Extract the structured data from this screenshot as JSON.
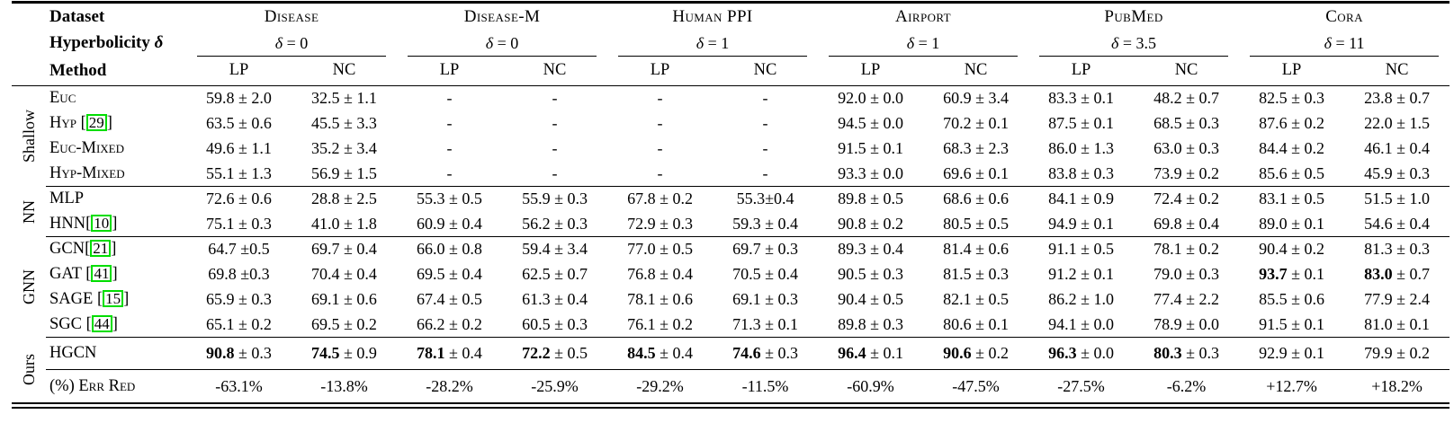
{
  "colors": {
    "citation_box": "#00dd00",
    "text": "#000000",
    "background": "#ffffff"
  },
  "table": {
    "header": {
      "corner_row1": "Dataset",
      "corner_row2_label": "Hyperbolicity",
      "corner_row2_symbol": "δ",
      "corner_row3": "Method",
      "delta_equals": " = ",
      "datasets": [
        {
          "name": "Disease",
          "delta": "0"
        },
        {
          "name": "Disease-M",
          "delta": "0"
        },
        {
          "name": "Human PPI",
          "delta": "1"
        },
        {
          "name": "Airport",
          "delta": "1"
        },
        {
          "name": "PubMed",
          "delta": "3.5"
        },
        {
          "name": "Cora",
          "delta": "11"
        }
      ],
      "subcolumns": [
        "LP",
        "NC"
      ]
    },
    "groups": [
      {
        "label": "Shallow",
        "rows": [
          {
            "method": {
              "name": "Euc"
            },
            "cells": [
              "59.8 ± 2.0",
              "32.5 ± 1.1",
              "-",
              "-",
              "-",
              "-",
              "92.0 ± 0.0",
              "60.9 ± 3.4",
              "83.3 ± 0.1",
              "48.2 ± 0.7",
              "82.5 ± 0.3",
              "23.8 ± 0.7"
            ]
          },
          {
            "method": {
              "name": "Hyp",
              "cite": "29",
              "space_before_cite": true
            },
            "cells": [
              "63.5 ± 0.6",
              "45.5 ± 3.3",
              "-",
              "-",
              "-",
              "-",
              "94.5 ± 0.0",
              "70.2 ± 0.1",
              "87.5 ± 0.1",
              "68.5 ± 0.3",
              "87.6 ± 0.2",
              "22.0 ± 1.5"
            ]
          },
          {
            "method": {
              "name": "Euc-Mixed"
            },
            "cells": [
              "49.6 ± 1.1",
              "35.2 ± 3.4",
              "-",
              "-",
              "-",
              "-",
              "91.5 ± 0.1",
              "68.3 ± 2.3",
              "86.0 ± 1.3",
              "63.0 ± 0.3",
              "84.4 ± 0.2",
              "46.1 ± 0.4"
            ]
          },
          {
            "method": {
              "name": "Hyp-Mixed"
            },
            "cells": [
              "55.1 ± 1.3",
              "56.9 ± 1.5",
              "-",
              "-",
              "-",
              "-",
              "93.3 ± 0.0",
              "69.6 ± 0.1",
              "83.8 ± 0.3",
              "73.9 ± 0.2",
              "85.6 ± 0.5",
              "45.9 ± 0.3"
            ]
          }
        ]
      },
      {
        "label": "NN",
        "rows": [
          {
            "method": {
              "name": "MLP"
            },
            "cells": [
              "72.6 ± 0.6",
              "28.8 ± 2.5",
              "55.3 ± 0.5",
              "55.9 ± 0.3",
              "67.8 ± 0.2",
              "55.3±0.4",
              "89.8 ± 0.5",
              "68.6 ± 0.6",
              "84.1 ± 0.9",
              "72.4 ± 0.2",
              "83.1 ± 0.5",
              "51.5 ± 1.0"
            ]
          },
          {
            "method": {
              "name": "HNN",
              "cite": "10",
              "space_before_cite": false
            },
            "cells": [
              "75.1 ± 0.3",
              "41.0 ± 1.8",
              "60.9 ± 0.4",
              "56.2 ± 0.3",
              "72.9 ± 0.3",
              "59.3 ± 0.4",
              "90.8 ± 0.2",
              "80.5 ± 0.5",
              "94.9 ± 0.1",
              "69.8 ± 0.4",
              "89.0 ± 0.1",
              "54.6 ± 0.4"
            ]
          }
        ]
      },
      {
        "label": "GNN",
        "rows": [
          {
            "method": {
              "name": "GCN",
              "cite": "21",
              "space_before_cite": false
            },
            "cells": [
              "64.7 ±0.5",
              "69.7 ± 0.4",
              "66.0 ± 0.8",
              "59.4 ± 3.4",
              "77.0 ± 0.5",
              "69.7 ± 0.3",
              "89.3 ± 0.4",
              "81.4 ± 0.6",
              "91.1 ± 0.5",
              "78.1 ± 0.2",
              "90.4 ± 0.2",
              "81.3 ± 0.3"
            ]
          },
          {
            "method": {
              "name": "GAT",
              "cite": "41",
              "space_before_cite": true
            },
            "cells": [
              "69.8 ±0.3",
              "70.4 ± 0.4",
              "69.5 ± 0.4",
              "62.5 ± 0.7",
              "76.8 ± 0.4",
              "70.5 ± 0.4",
              "90.5 ± 0.3",
              "81.5 ± 0.3",
              "91.2 ± 0.1",
              "79.0 ± 0.3",
              {
                "b": "93.7",
                "t": " ± 0.1"
              },
              {
                "b": "83.0",
                "t": " ± 0.7"
              }
            ]
          },
          {
            "method": {
              "name": "SAGE",
              "cite": "15",
              "space_before_cite": true
            },
            "cells": [
              "65.9 ± 0.3",
              "69.1 ± 0.6",
              "67.4 ± 0.5",
              "61.3 ± 0.4",
              "78.1 ± 0.6",
              "69.1 ± 0.3",
              "90.4 ± 0.5",
              "82.1 ± 0.5",
              "86.2 ± 1.0",
              "77.4 ± 2.2",
              "85.5 ± 0.6",
              "77.9 ± 2.4"
            ]
          },
          {
            "method": {
              "name": "SGC",
              "cite": "44",
              "space_before_cite": true
            },
            "cells": [
              "65.1 ± 0.2",
              "69.5 ± 0.2",
              "66.2 ± 0.2",
              "60.5 ± 0.3",
              "76.1 ± 0.2",
              "71.3 ± 0.1",
              "89.8 ± 0.3",
              "80.6 ± 0.1",
              "94.1 ± 0.0",
              "78.9 ± 0.0",
              "91.5 ± 0.1",
              "81.0 ± 0.1"
            ]
          }
        ]
      },
      {
        "label": "Ours",
        "rows": [
          {
            "method": {
              "name": "HGCN"
            },
            "rule_after": true,
            "tall": true,
            "cells": [
              {
                "b": "90.8",
                "t": " ± 0.3"
              },
              {
                "b": "74.5",
                "t": " ± 0.9"
              },
              {
                "b": "78.1",
                "t": " ± 0.4"
              },
              {
                "b": "72.2",
                "t": " ± 0.5"
              },
              {
                "b": "84.5",
                "t": " ± 0.4"
              },
              {
                "b": "74.6",
                "t": " ± 0.3"
              },
              {
                "b": "96.4",
                "t": " ± 0.1"
              },
              {
                "b": "90.6",
                "t": " ± 0.2"
              },
              {
                "b": "96.3",
                "t": " ± 0.0"
              },
              {
                "b": "80.3",
                "t": " ± 0.3"
              },
              "92.9 ± 0.1",
              "79.9 ± 0.2"
            ]
          },
          {
            "method": {
              "name": "(%) Err Red"
            },
            "last": true,
            "cells": [
              "-63.1%",
              "-13.8%",
              "-28.2%",
              "-25.9%",
              "-29.2%",
              "-11.5%",
              "-60.9%",
              "-47.5%",
              "-27.5%",
              "-6.2%",
              "+12.7%",
              "+18.2%"
            ]
          }
        ]
      }
    ]
  }
}
